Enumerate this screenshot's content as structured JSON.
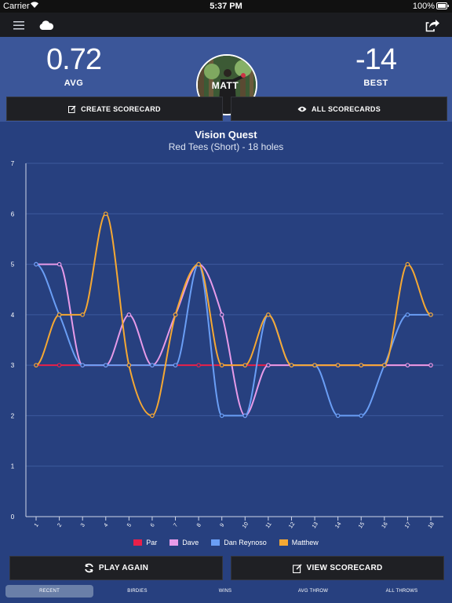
{
  "status_bar": {
    "carrier": "Carrier",
    "time": "5:37 PM",
    "battery": "100%"
  },
  "header": {
    "menu_icon": "hamburger-icon",
    "cloud_icon": "cloud-icon",
    "share_icon": "share-icon"
  },
  "stats": {
    "avg_value": "0.72",
    "avg_label": "AVG",
    "player_name": "MATT",
    "best_value": "-14",
    "best_label": "BEST"
  },
  "actions": {
    "create_scorecard": "CREATE SCORECARD",
    "all_scorecards": "ALL SCORECARDS"
  },
  "course": {
    "title": "Vision Quest",
    "subtitle": "Red Tees (Short) - 18 holes"
  },
  "chart_data": {
    "type": "line",
    "x": [
      1,
      2,
      3,
      4,
      5,
      6,
      7,
      8,
      9,
      10,
      11,
      12,
      13,
      14,
      15,
      16,
      17,
      18
    ],
    "ylim": [
      0,
      7
    ],
    "yticks": [
      "0",
      "1",
      "2",
      "3",
      "4",
      "5",
      "6",
      "7"
    ],
    "xticks": [
      "1",
      "2",
      "3",
      "4",
      "5",
      "6",
      "7",
      "8",
      "9",
      "10",
      "11",
      "12",
      "13",
      "14",
      "15",
      "16",
      "17",
      "18"
    ],
    "grid": true,
    "legend_position": "bottom",
    "series": [
      {
        "name": "Par",
        "color": "#e8204a",
        "values": [
          3,
          3,
          3,
          3,
          3,
          3,
          3,
          3,
          3,
          3,
          3,
          3,
          3,
          3,
          3,
          3,
          3,
          3
        ]
      },
      {
        "name": "Dave",
        "color": "#e79be9",
        "values": [
          5,
          5,
          3,
          3,
          4,
          3,
          4,
          5,
          4,
          2,
          3,
          3,
          3,
          3,
          3,
          3,
          3,
          3
        ]
      },
      {
        "name": "Dan Reynoso",
        "color": "#6a9ef5",
        "values": [
          5,
          4,
          3,
          3,
          3,
          3,
          3,
          5,
          2,
          2,
          4,
          3,
          3,
          2,
          2,
          3,
          4,
          4
        ]
      },
      {
        "name": "Matthew",
        "color": "#f5a833",
        "values": [
          3,
          4,
          4,
          6,
          3,
          2,
          4,
          5,
          3,
          3,
          4,
          3,
          3,
          3,
          3,
          3,
          5,
          4
        ]
      }
    ]
  },
  "bottom_actions": {
    "play_again": "PLAY AGAIN",
    "view_scorecard": "VIEW SCORECARD"
  },
  "tabs": [
    {
      "label": "RECENT",
      "active": true
    },
    {
      "label": "BIRDIES",
      "active": false
    },
    {
      "label": "WINS",
      "active": false
    },
    {
      "label": "AVG THROW",
      "active": false
    },
    {
      "label": "ALL THROWS",
      "active": false
    }
  ]
}
